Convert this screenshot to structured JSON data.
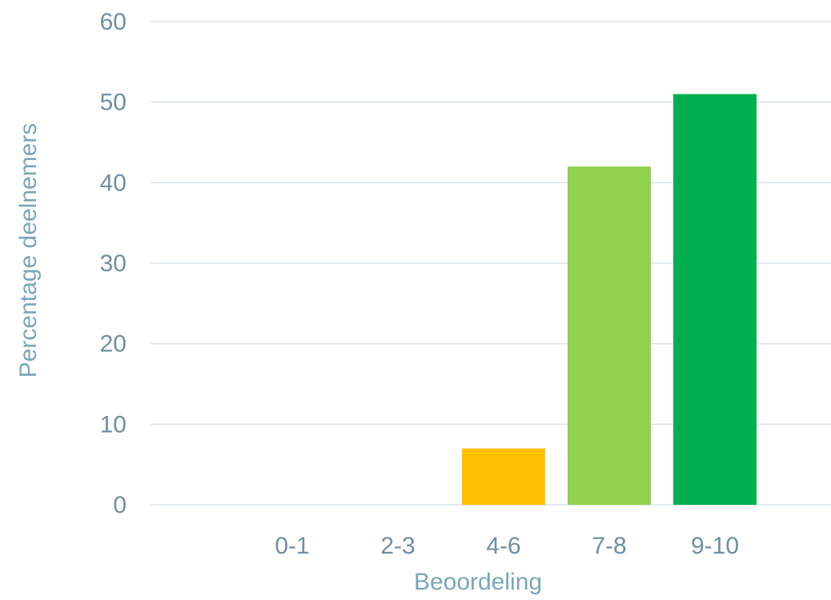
{
  "chart_data": {
    "type": "bar",
    "title": "",
    "xlabel": "Beoordeling",
    "ylabel": "Percentage deelnemers",
    "categories": [
      "0-1",
      "2-3",
      "4-6",
      "7-8",
      "9-10"
    ],
    "values": [
      0,
      0,
      7,
      42,
      51
    ],
    "bar_colors": [
      "#00b050",
      "#00b050",
      "#ffc000",
      "#92d050",
      "#00b050"
    ],
    "yticks": [
      0,
      10,
      20,
      30,
      40,
      50,
      60
    ],
    "ylim": [
      0,
      60
    ],
    "grid": true,
    "legend": "none"
  }
}
